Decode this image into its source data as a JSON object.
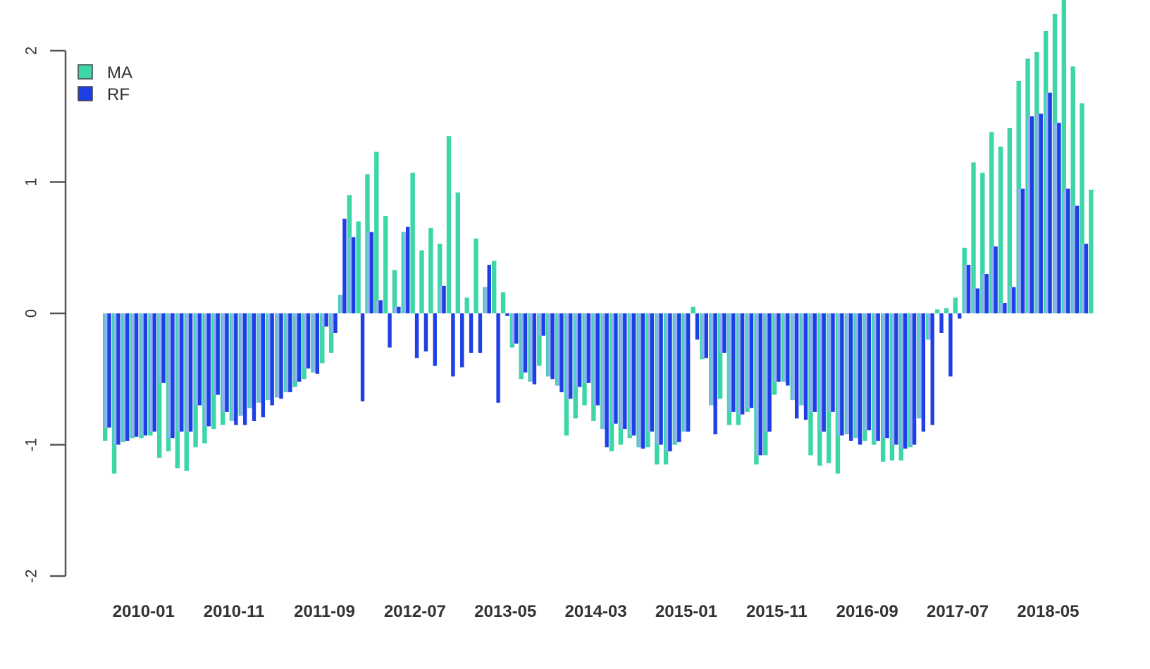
{
  "chart_data": {
    "type": "bar",
    "title": "",
    "xlabel": "",
    "ylabel": "",
    "ylim": [
      -2,
      2
    ],
    "yticks": [
      -2,
      -1,
      0,
      1,
      2
    ],
    "xtick_labels": [
      "2010-01",
      "2010-11",
      "2011-09",
      "2012-07",
      "2013-05",
      "2014-03",
      "2015-01",
      "2015-11",
      "2016-09",
      "2017-07",
      "2018-05"
    ],
    "xtick_positions": [
      4,
      14,
      24,
      34,
      44,
      54,
      64,
      74,
      84,
      94,
      104
    ],
    "start": "2009-09",
    "legend": {
      "placement": "top-left",
      "entries": [
        "MA",
        "RF"
      ]
    },
    "grid": false,
    "colors": {
      "MA": "#3cd6a8",
      "RF": "#1f3fe6",
      "shade": "#8fb3f0"
    },
    "series": [
      {
        "name": "MA",
        "values": [
          -0.97,
          -1.22,
          -0.98,
          -0.95,
          -0.95,
          -0.93,
          -1.1,
          -1.05,
          -1.18,
          -1.2,
          -1.02,
          -0.99,
          -0.88,
          -0.85,
          -0.82,
          -0.78,
          -0.72,
          -0.68,
          -0.66,
          -0.64,
          -0.6,
          -0.56,
          -0.5,
          -0.45,
          -0.38,
          -0.3,
          0.14,
          0.9,
          0.7,
          1.06,
          1.23,
          0.74,
          0.33,
          0.62,
          1.07,
          0.48,
          0.65,
          0.53,
          1.35,
          0.92,
          0.12,
          0.57,
          0.2,
          0.4,
          0.16,
          -0.26,
          -0.5,
          -0.52,
          -0.4,
          -0.48,
          -0.55,
          -0.93,
          -0.8,
          -0.7,
          -0.82,
          -0.88,
          -1.05,
          -1.0,
          -0.95,
          -1.02,
          -1.02,
          -1.15,
          -1.15,
          -1.0,
          -0.9,
          0.05,
          -0.35,
          -0.7,
          -0.65,
          -0.85,
          -0.85,
          -0.75,
          -1.15,
          -1.08,
          -0.62,
          -0.52,
          -0.66,
          -0.7,
          -1.08,
          -1.16,
          -1.14,
          -1.22,
          -0.92,
          -0.95,
          -0.97,
          -1.0,
          -1.13,
          -1.12,
          -1.12,
          -1.02,
          -0.8,
          -0.2,
          0.03,
          0.04,
          0.12,
          0.5,
          1.15,
          1.07,
          1.38,
          1.27,
          1.41,
          1.77,
          1.94,
          1.99,
          2.15,
          2.28,
          2.42,
          1.88,
          1.6,
          0.94
        ],
        "estimated": true
      },
      {
        "name": "RF",
        "values": [
          -0.87,
          -1.0,
          -0.97,
          -0.94,
          -0.93,
          -0.9,
          -0.53,
          -0.95,
          -0.9,
          -0.9,
          -0.7,
          -0.86,
          -0.62,
          -0.75,
          -0.85,
          -0.85,
          -0.82,
          -0.79,
          -0.7,
          -0.65,
          -0.6,
          -0.52,
          -0.42,
          -0.46,
          -0.1,
          -0.15,
          0.72,
          0.58,
          -0.67,
          0.62,
          0.1,
          -0.26,
          0.05,
          0.66,
          -0.34,
          -0.29,
          -0.4,
          0.21,
          -0.48,
          -0.41,
          -0.3,
          -0.3,
          0.37,
          -0.68,
          -0.02,
          -0.23,
          -0.45,
          -0.54,
          -0.17,
          -0.5,
          -0.6,
          -0.65,
          -0.56,
          -0.53,
          -0.7,
          -1.02,
          -0.84,
          -0.88,
          -0.93,
          -1.03,
          -0.9,
          -1.0,
          -1.05,
          -0.98,
          -0.9,
          -0.2,
          -0.34,
          -0.92,
          -0.3,
          -0.75,
          -0.77,
          -0.72,
          -1.08,
          -0.9,
          -0.52,
          -0.55,
          -0.8,
          -0.81,
          -0.75,
          -0.9,
          -0.75,
          -0.93,
          -0.97,
          -1.0,
          -0.89,
          -0.97,
          -0.95,
          -1.0,
          -1.03,
          -1.0,
          -0.9,
          -0.85,
          -0.15,
          -0.48,
          -0.04,
          0.37,
          0.19,
          0.3,
          0.51,
          0.08,
          0.2,
          0.95,
          1.5,
          1.52,
          1.68,
          1.45,
          0.95,
          0.82,
          0.53
        ],
        "estimated": true
      }
    ]
  }
}
